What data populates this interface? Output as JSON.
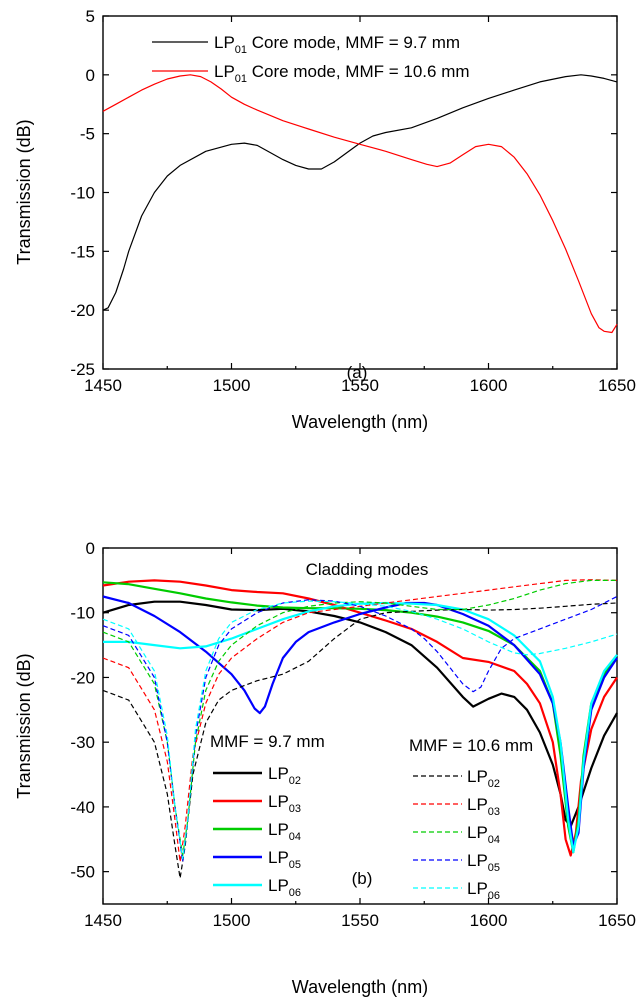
{
  "chart_data": [
    {
      "type": "line",
      "panel_label": "(a)",
      "xlabel": "Wavelength (nm)",
      "ylabel": "Transmission (dB)",
      "xlim": [
        1450,
        1650
      ],
      "ylim": [
        -25,
        5
      ],
      "xticks": [
        1450,
        1500,
        1550,
        1600,
        1650
      ],
      "yticks": [
        5,
        0,
        -5,
        -10,
        -15,
        -20,
        -25
      ],
      "grid": false,
      "legend_position": "top",
      "series": [
        {
          "name_main": "LP",
          "name_sub": "01",
          "name_rest": " Core mode, MMF = 9.7   mm",
          "color": "#000000",
          "style": "solid",
          "x": [
            1450,
            1452,
            1455,
            1458,
            1460,
            1465,
            1470,
            1475,
            1480,
            1490,
            1500,
            1505,
            1510,
            1515,
            1520,
            1525,
            1530,
            1535,
            1540,
            1545,
            1550,
            1555,
            1560,
            1570,
            1580,
            1590,
            1600,
            1610,
            1620,
            1630,
            1636,
            1640,
            1645,
            1650
          ],
          "y": [
            -20,
            -19.8,
            -18.5,
            -16.5,
            -15,
            -12,
            -10,
            -8.6,
            -7.7,
            -6.5,
            -5.9,
            -5.8,
            -6,
            -6.6,
            -7.2,
            -7.7,
            -8,
            -8,
            -7.4,
            -6.6,
            -5.8,
            -5.2,
            -4.9,
            -4.5,
            -3.7,
            -2.8,
            -2.0,
            -1.3,
            -0.6,
            -0.15,
            0,
            -0.1,
            -0.3,
            -0.6
          ]
        },
        {
          "name_main": "LP",
          "name_sub": "01",
          "name_rest": " Core mode, MMF = 10.6 mm",
          "color": "#ff0000",
          "style": "solid",
          "x": [
            1450,
            1455,
            1460,
            1465,
            1470,
            1475,
            1480,
            1484,
            1488,
            1492,
            1496,
            1500,
            1505,
            1510,
            1520,
            1530,
            1540,
            1550,
            1560,
            1570,
            1576,
            1580,
            1585,
            1590,
            1595,
            1600,
            1605,
            1610,
            1615,
            1620,
            1625,
            1630,
            1635,
            1640,
            1643,
            1645,
            1648,
            1650
          ],
          "y": [
            -3.1,
            -2.5,
            -1.9,
            -1.3,
            -0.8,
            -0.35,
            -0.1,
            0,
            -0.15,
            -0.6,
            -1.2,
            -1.9,
            -2.5,
            -3.0,
            -3.9,
            -4.6,
            -5.3,
            -5.9,
            -6.5,
            -7.2,
            -7.6,
            -7.8,
            -7.5,
            -6.8,
            -6.1,
            -5.9,
            -6.1,
            -7.0,
            -8.4,
            -10.2,
            -12.4,
            -14.8,
            -17.5,
            -20.3,
            -21.5,
            -21.8,
            -21.9,
            -21.2
          ]
        }
      ]
    },
    {
      "type": "line",
      "panel_label": "(b)",
      "annotation": "Cladding modes",
      "xlabel": "Wavelength (nm)",
      "ylabel": "Transmission (dB)",
      "xlim": [
        1450,
        1650
      ],
      "ylim": [
        -55,
        0
      ],
      "xticks": [
        1450,
        1500,
        1550,
        1600,
        1650
      ],
      "yticks": [
        0,
        -10,
        -20,
        -30,
        -40,
        -50
      ],
      "grid": false,
      "legend_groups": [
        {
          "title": "MMF = 9.7 mm",
          "position": "bottom-left"
        },
        {
          "title": "MMF = 10.6 mm",
          "position": "bottom-right"
        }
      ],
      "series": [
        {
          "name_main": "LP",
          "name_sub": "02",
          "group": 0,
          "color": "#000000",
          "style": "solid",
          "x": [
            1450,
            1460,
            1470,
            1480,
            1490,
            1500,
            1510,
            1520,
            1530,
            1540,
            1550,
            1560,
            1570,
            1580,
            1590,
            1594,
            1600,
            1605,
            1610,
            1615,
            1620,
            1625,
            1628,
            1630,
            1632,
            1635,
            1640,
            1645,
            1650
          ],
          "y": [
            -10,
            -8.8,
            -8.3,
            -8.3,
            -8.8,
            -9.5,
            -9.6,
            -9.4,
            -9.8,
            -10.5,
            -11.5,
            -13,
            -15,
            -18.5,
            -23,
            -24.5,
            -23.3,
            -22.5,
            -23,
            -25,
            -28.5,
            -33.5,
            -38,
            -42,
            -43,
            -40,
            -34,
            -29,
            -25.5
          ]
        },
        {
          "name_main": "LP",
          "name_sub": "03",
          "group": 0,
          "color": "#ff0000",
          "style": "solid",
          "x": [
            1450,
            1460,
            1470,
            1480,
            1490,
            1500,
            1510,
            1520,
            1530,
            1540,
            1550,
            1560,
            1570,
            1580,
            1590,
            1600,
            1610,
            1615,
            1620,
            1625,
            1628,
            1630,
            1632,
            1634,
            1636,
            1640,
            1645,
            1650
          ],
          "y": [
            -5.8,
            -5.2,
            -5,
            -5.2,
            -5.8,
            -6.5,
            -6.8,
            -7,
            -7.8,
            -8.8,
            -10,
            -11.2,
            -12.5,
            -14.5,
            -17,
            -17.6,
            -19,
            -21,
            -24,
            -30,
            -38,
            -45,
            -47.5,
            -44,
            -36,
            -28,
            -23,
            -20
          ]
        },
        {
          "name_main": "LP",
          "name_sub": "04",
          "group": 0,
          "color": "#00cc00",
          "style": "solid",
          "x": [
            1450,
            1460,
            1470,
            1480,
            1490,
            1500,
            1510,
            1520,
            1530,
            1540,
            1550,
            1560,
            1570,
            1580,
            1590,
            1600,
            1610,
            1620,
            1625,
            1628,
            1631,
            1633,
            1635,
            1637,
            1640,
            1645,
            1650
          ],
          "y": [
            -5.3,
            -5.6,
            -6.3,
            -7,
            -7.8,
            -8.4,
            -8.9,
            -9.2,
            -9.3,
            -9.3,
            -9.4,
            -9.6,
            -10,
            -10.6,
            -11.5,
            -12.8,
            -15,
            -19,
            -24,
            -32,
            -43,
            -47,
            -42,
            -32,
            -24,
            -19.5,
            -17
          ]
        },
        {
          "name_main": "LP",
          "name_sub": "05",
          "group": 0,
          "color": "#0000ff",
          "style": "solid",
          "x": [
            1450,
            1460,
            1470,
            1480,
            1490,
            1500,
            1505,
            1509,
            1511,
            1513,
            1516,
            1520,
            1525,
            1530,
            1540,
            1550,
            1560,
            1568,
            1575,
            1580,
            1590,
            1600,
            1610,
            1620,
            1625,
            1628,
            1631,
            1633,
            1635,
            1637,
            1640,
            1645,
            1650
          ],
          "y": [
            -7.5,
            -8.5,
            -10.5,
            -13,
            -16,
            -19.5,
            -22,
            -24.8,
            -25.5,
            -24.5,
            -21,
            -17,
            -14.5,
            -13,
            -11.5,
            -10.2,
            -9.2,
            -8.5,
            -8.5,
            -8.8,
            -10.2,
            -12,
            -15,
            -19.5,
            -24,
            -30,
            -40,
            -46,
            -44,
            -34,
            -25,
            -20,
            -17
          ]
        },
        {
          "name_main": "LP",
          "name_sub": "06",
          "group": 0,
          "color": "#00ffff",
          "style": "solid",
          "x": [
            1450,
            1460,
            1470,
            1480,
            1490,
            1500,
            1510,
            1520,
            1530,
            1540,
            1550,
            1560,
            1570,
            1580,
            1590,
            1600,
            1610,
            1620,
            1625,
            1628,
            1631,
            1633,
            1635,
            1637,
            1640,
            1645,
            1650
          ],
          "y": [
            -14.5,
            -14.5,
            -15,
            -15.5,
            -15.2,
            -14,
            -12.5,
            -11,
            -9.8,
            -9,
            -8.6,
            -8.5,
            -8.6,
            -8.8,
            -9.5,
            -11,
            -13.5,
            -17.5,
            -23,
            -30,
            -42,
            -47,
            -43,
            -33,
            -24,
            -19,
            -16.5
          ]
        },
        {
          "name_main": "LP",
          "name_sub": "02",
          "group": 1,
          "color": "#000000",
          "style": "dashed",
          "x": [
            1450,
            1460,
            1470,
            1475,
            1478,
            1480,
            1482,
            1485,
            1490,
            1495,
            1500,
            1510,
            1520,
            1530,
            1540,
            1550,
            1560,
            1570,
            1580,
            1590,
            1600,
            1610,
            1620,
            1630,
            1640,
            1650
          ],
          "y": [
            -22,
            -23.5,
            -30,
            -38,
            -46,
            -51,
            -46,
            -35,
            -27,
            -23.5,
            -22,
            -20.5,
            -19.5,
            -17.5,
            -14,
            -11,
            -10,
            -9.8,
            -9.6,
            -9.5,
            -9.6,
            -9.5,
            -9.3,
            -9,
            -8.7,
            -8.5
          ]
        },
        {
          "name_main": "LP",
          "name_sub": "03",
          "group": 1,
          "color": "#ff0000",
          "style": "dashed",
          "x": [
            1450,
            1460,
            1470,
            1475,
            1478,
            1480,
            1482,
            1485,
            1490,
            1495,
            1500,
            1510,
            1520,
            1530,
            1540,
            1550,
            1560,
            1570,
            1580,
            1590,
            1600,
            1610,
            1620,
            1630,
            1640,
            1650
          ],
          "y": [
            -17,
            -18.5,
            -25,
            -33,
            -42,
            -48.5,
            -43,
            -32,
            -24,
            -19.5,
            -17,
            -14,
            -11.5,
            -10,
            -9.5,
            -9,
            -8.5,
            -8,
            -7.5,
            -7,
            -6.5,
            -6,
            -5.5,
            -5,
            -4.9,
            -5
          ]
        },
        {
          "name_main": "LP",
          "name_sub": "04",
          "group": 1,
          "color": "#00cc00",
          "style": "dashed",
          "x": [
            1450,
            1460,
            1470,
            1475,
            1478,
            1481,
            1483,
            1486,
            1490,
            1495,
            1500,
            1510,
            1520,
            1530,
            1540,
            1550,
            1560,
            1570,
            1580,
            1590,
            1600,
            1610,
            1620,
            1630,
            1640,
            1650
          ],
          "y": [
            -13,
            -14.5,
            -21,
            -30,
            -40,
            -47.5,
            -42,
            -30,
            -22,
            -17.5,
            -15,
            -12,
            -10,
            -9,
            -8.5,
            -8.3,
            -8.5,
            -9,
            -9.5,
            -9.5,
            -8.8,
            -7.8,
            -6.5,
            -5.5,
            -5,
            -5
          ]
        },
        {
          "name_main": "LP",
          "name_sub": "05",
          "group": 1,
          "color": "#0000ff",
          "style": "dashed",
          "x": [
            1450,
            1460,
            1470,
            1475,
            1478,
            1481,
            1483,
            1486,
            1490,
            1495,
            1500,
            1510,
            1520,
            1530,
            1540,
            1550,
            1560,
            1570,
            1575,
            1580,
            1585,
            1590,
            1594,
            1597,
            1600,
            1605,
            1610,
            1620,
            1630,
            1640,
            1650
          ],
          "y": [
            -12,
            -13.5,
            -20,
            -30,
            -40,
            -48.5,
            -42,
            -29,
            -20,
            -15,
            -12.5,
            -10,
            -8.5,
            -8,
            -8.2,
            -9,
            -10.5,
            -12.5,
            -14,
            -16,
            -18.5,
            -21,
            -22.2,
            -21.5,
            -19,
            -15.5,
            -14,
            -12.5,
            -11,
            -9.5,
            -7.5
          ]
        },
        {
          "name_main": "LP",
          "name_sub": "06",
          "group": 1,
          "color": "#00ffff",
          "style": "dashed",
          "x": [
            1450,
            1460,
            1470,
            1475,
            1478,
            1481,
            1483,
            1486,
            1490,
            1495,
            1500,
            1510,
            1520,
            1530,
            1540,
            1550,
            1560,
            1570,
            1580,
            1590,
            1600,
            1610,
            1615,
            1620,
            1630,
            1640,
            1650
          ],
          "y": [
            -11,
            -12.5,
            -19,
            -29,
            -40,
            -48,
            -42,
            -28,
            -19,
            -14,
            -11.5,
            -9.5,
            -8.5,
            -8.2,
            -8.3,
            -8.6,
            -9,
            -9.8,
            -11,
            -12.5,
            -14.5,
            -16.2,
            -16.5,
            -16.3,
            -15.5,
            -14.5,
            -13.3
          ]
        }
      ]
    }
  ]
}
